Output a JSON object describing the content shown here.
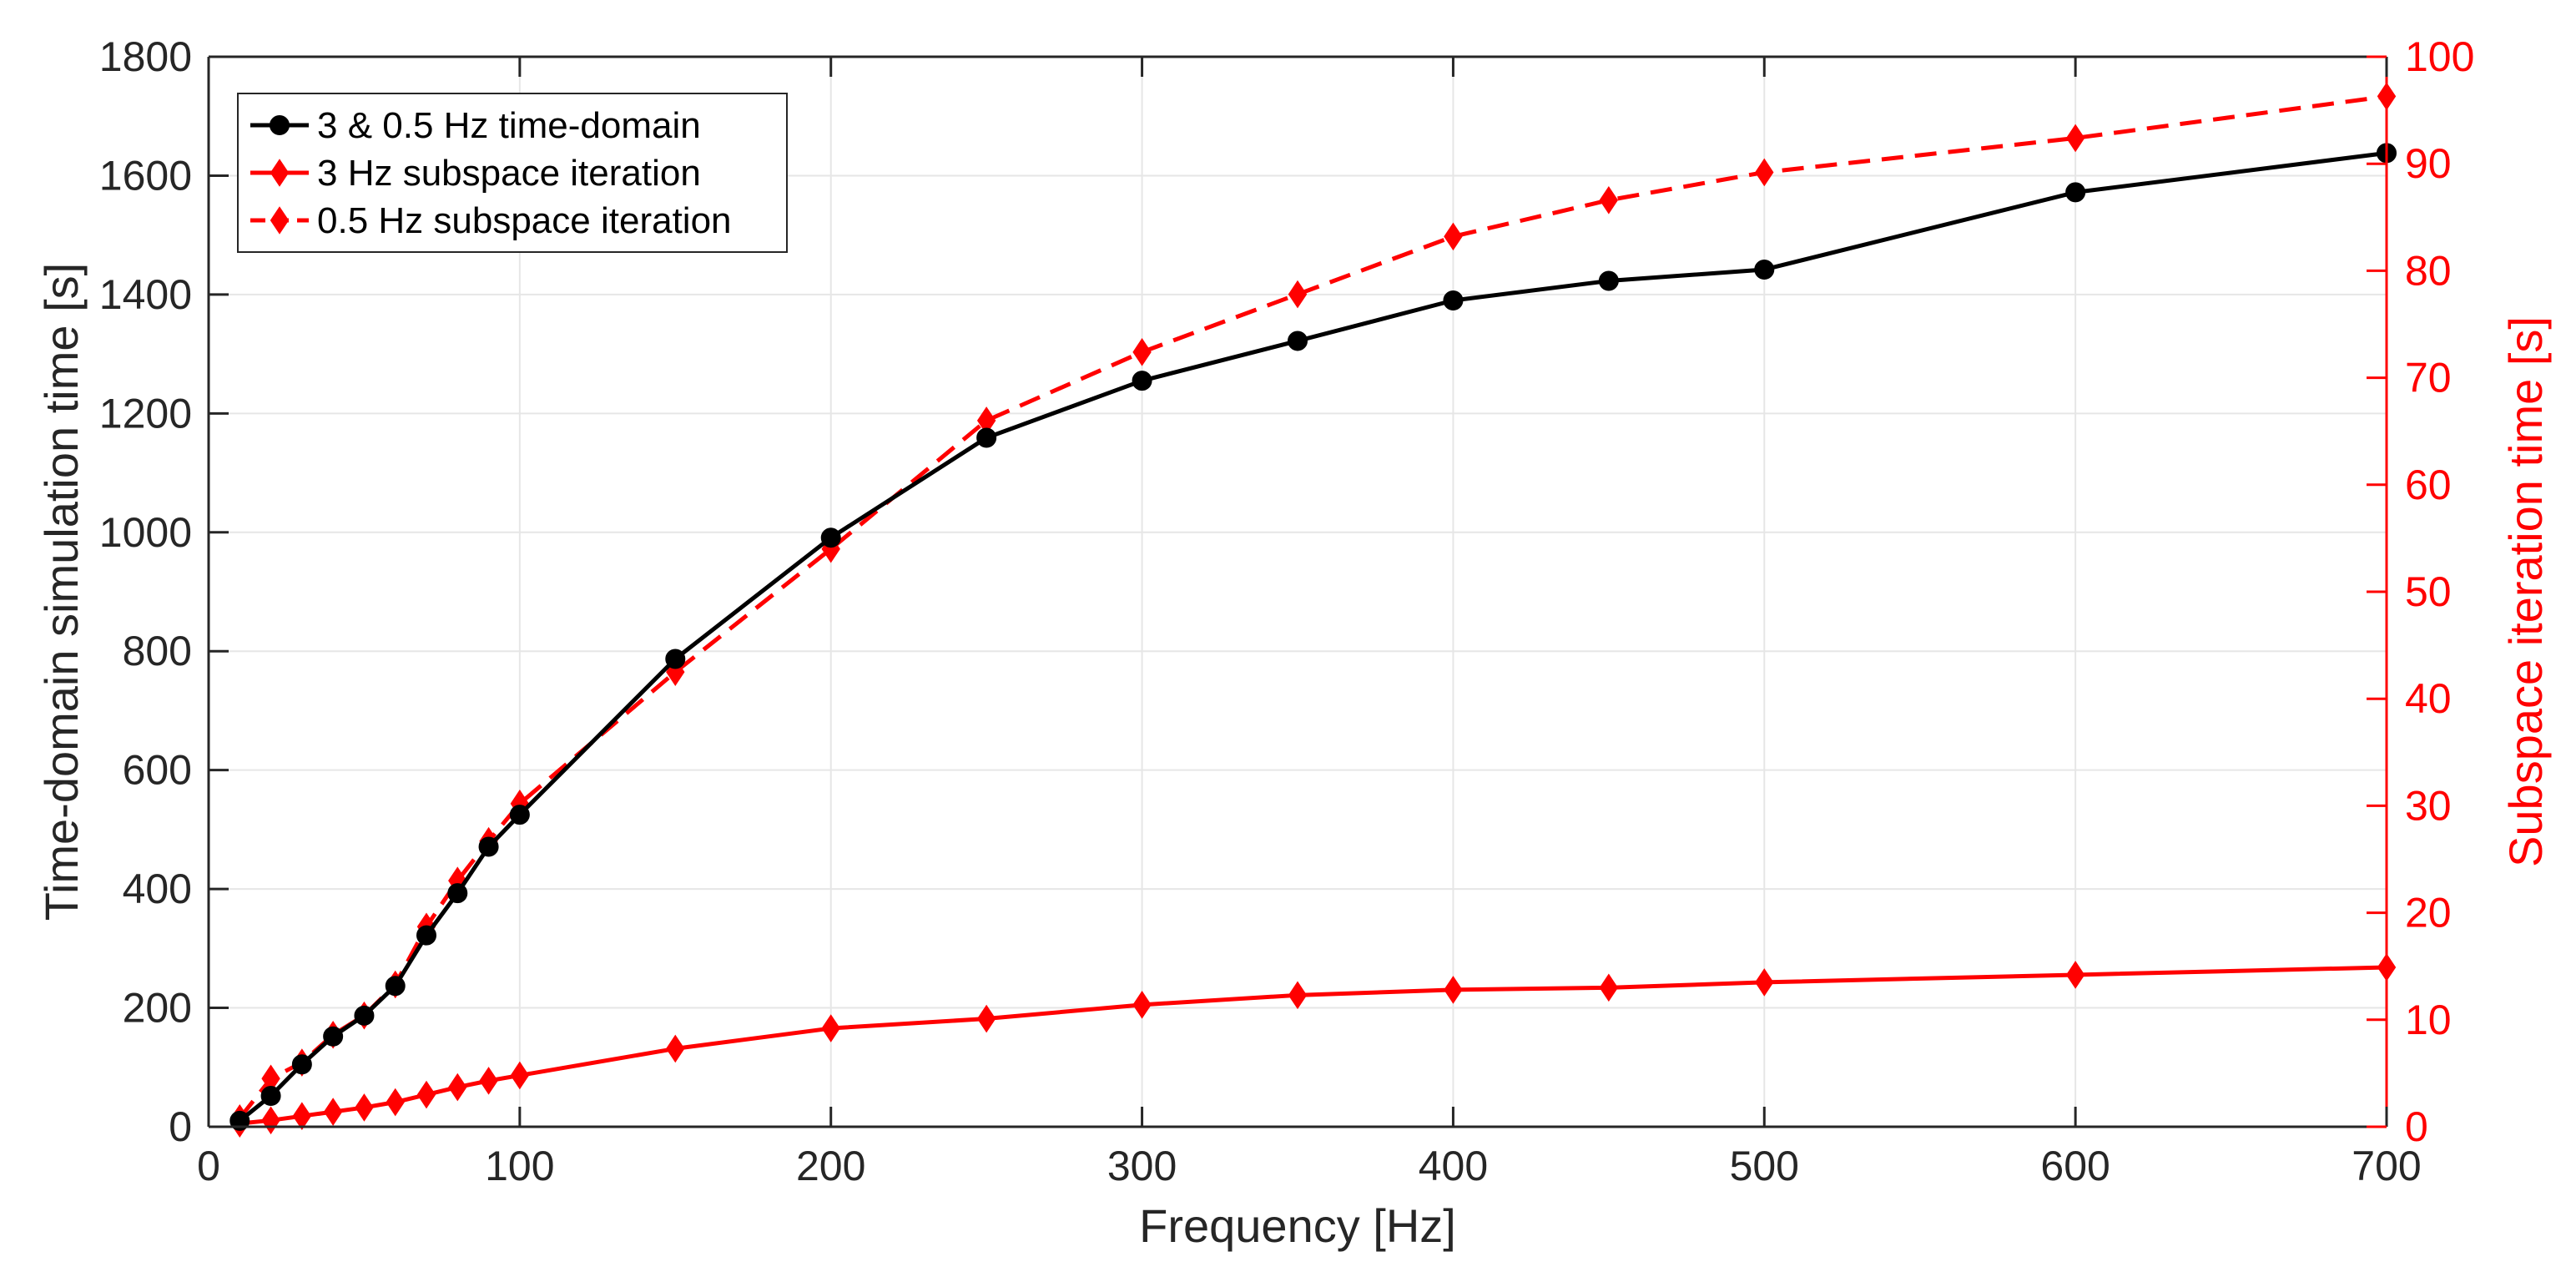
{
  "chart_data": {
    "type": "line",
    "title": "",
    "xlabel": "Frequency [Hz]",
    "ylabel_left": "Time-domain simulation time [s]",
    "ylabel_right": "Subspace iteration time [s]",
    "xlim": [
      0,
      700
    ],
    "ylim_left": [
      0,
      1800
    ],
    "ylim_right": [
      0,
      100
    ],
    "x_ticks": [
      0,
      100,
      200,
      300,
      400,
      500,
      600,
      700
    ],
    "y_left_ticks": [
      0,
      200,
      400,
      600,
      800,
      1000,
      1200,
      1400,
      1600,
      1800
    ],
    "y_right_ticks": [
      0,
      10,
      20,
      30,
      40,
      50,
      60,
      70,
      80,
      90,
      100
    ],
    "grid": true,
    "legend_position": "top-left",
    "colors": {
      "left_axis": "#262626",
      "right_axis": "#ff0000",
      "grid": "#e6e6e6"
    },
    "series": [
      {
        "name": "3 & 0.5 Hz time-domain",
        "axis": "left",
        "color": "#000000",
        "line_style": "solid",
        "marker": "circle",
        "x": [
          10,
          20,
          30,
          40,
          50,
          60,
          70,
          80,
          90,
          100,
          150,
          200,
          250,
          300,
          350,
          400,
          450,
          500,
          600,
          700
        ],
        "values": [
          10,
          52,
          105,
          152,
          187,
          237,
          322,
          393,
          471,
          525,
          787,
          991,
          1159,
          1255,
          1322,
          1390,
          1423,
          1442,
          1572,
          1638
        ]
      },
      {
        "name": "3 Hz subspace iteration",
        "axis": "right",
        "color": "#ff0000",
        "line_style": "solid",
        "marker": "diamond",
        "x": [
          10,
          20,
          30,
          40,
          50,
          60,
          70,
          80,
          90,
          100,
          150,
          200,
          250,
          300,
          350,
          400,
          450,
          500,
          600,
          700
        ],
        "values": [
          0.3,
          0.6,
          1.0,
          1.4,
          1.8,
          2.3,
          3.0,
          3.7,
          4.3,
          4.8,
          7.3,
          9.2,
          10.1,
          11.4,
          12.3,
          12.8,
          13.0,
          13.5,
          14.2,
          14.9
        ]
      },
      {
        "name": "0.5 Hz subspace iteration",
        "axis": "right",
        "color": "#ff0000",
        "line_style": "dashed",
        "marker": "diamond",
        "x": [
          10,
          20,
          30,
          40,
          50,
          60,
          70,
          80,
          90,
          100,
          150,
          200,
          250,
          300,
          350,
          400,
          450,
          500,
          600,
          700
        ],
        "values": [
          0.8,
          4.5,
          6.0,
          8.6,
          10.4,
          13.3,
          18.7,
          23.0,
          26.7,
          30.2,
          42.5,
          54.0,
          66.0,
          72.4,
          77.8,
          83.2,
          86.6,
          89.2,
          92.4,
          96.3
        ]
      }
    ]
  }
}
